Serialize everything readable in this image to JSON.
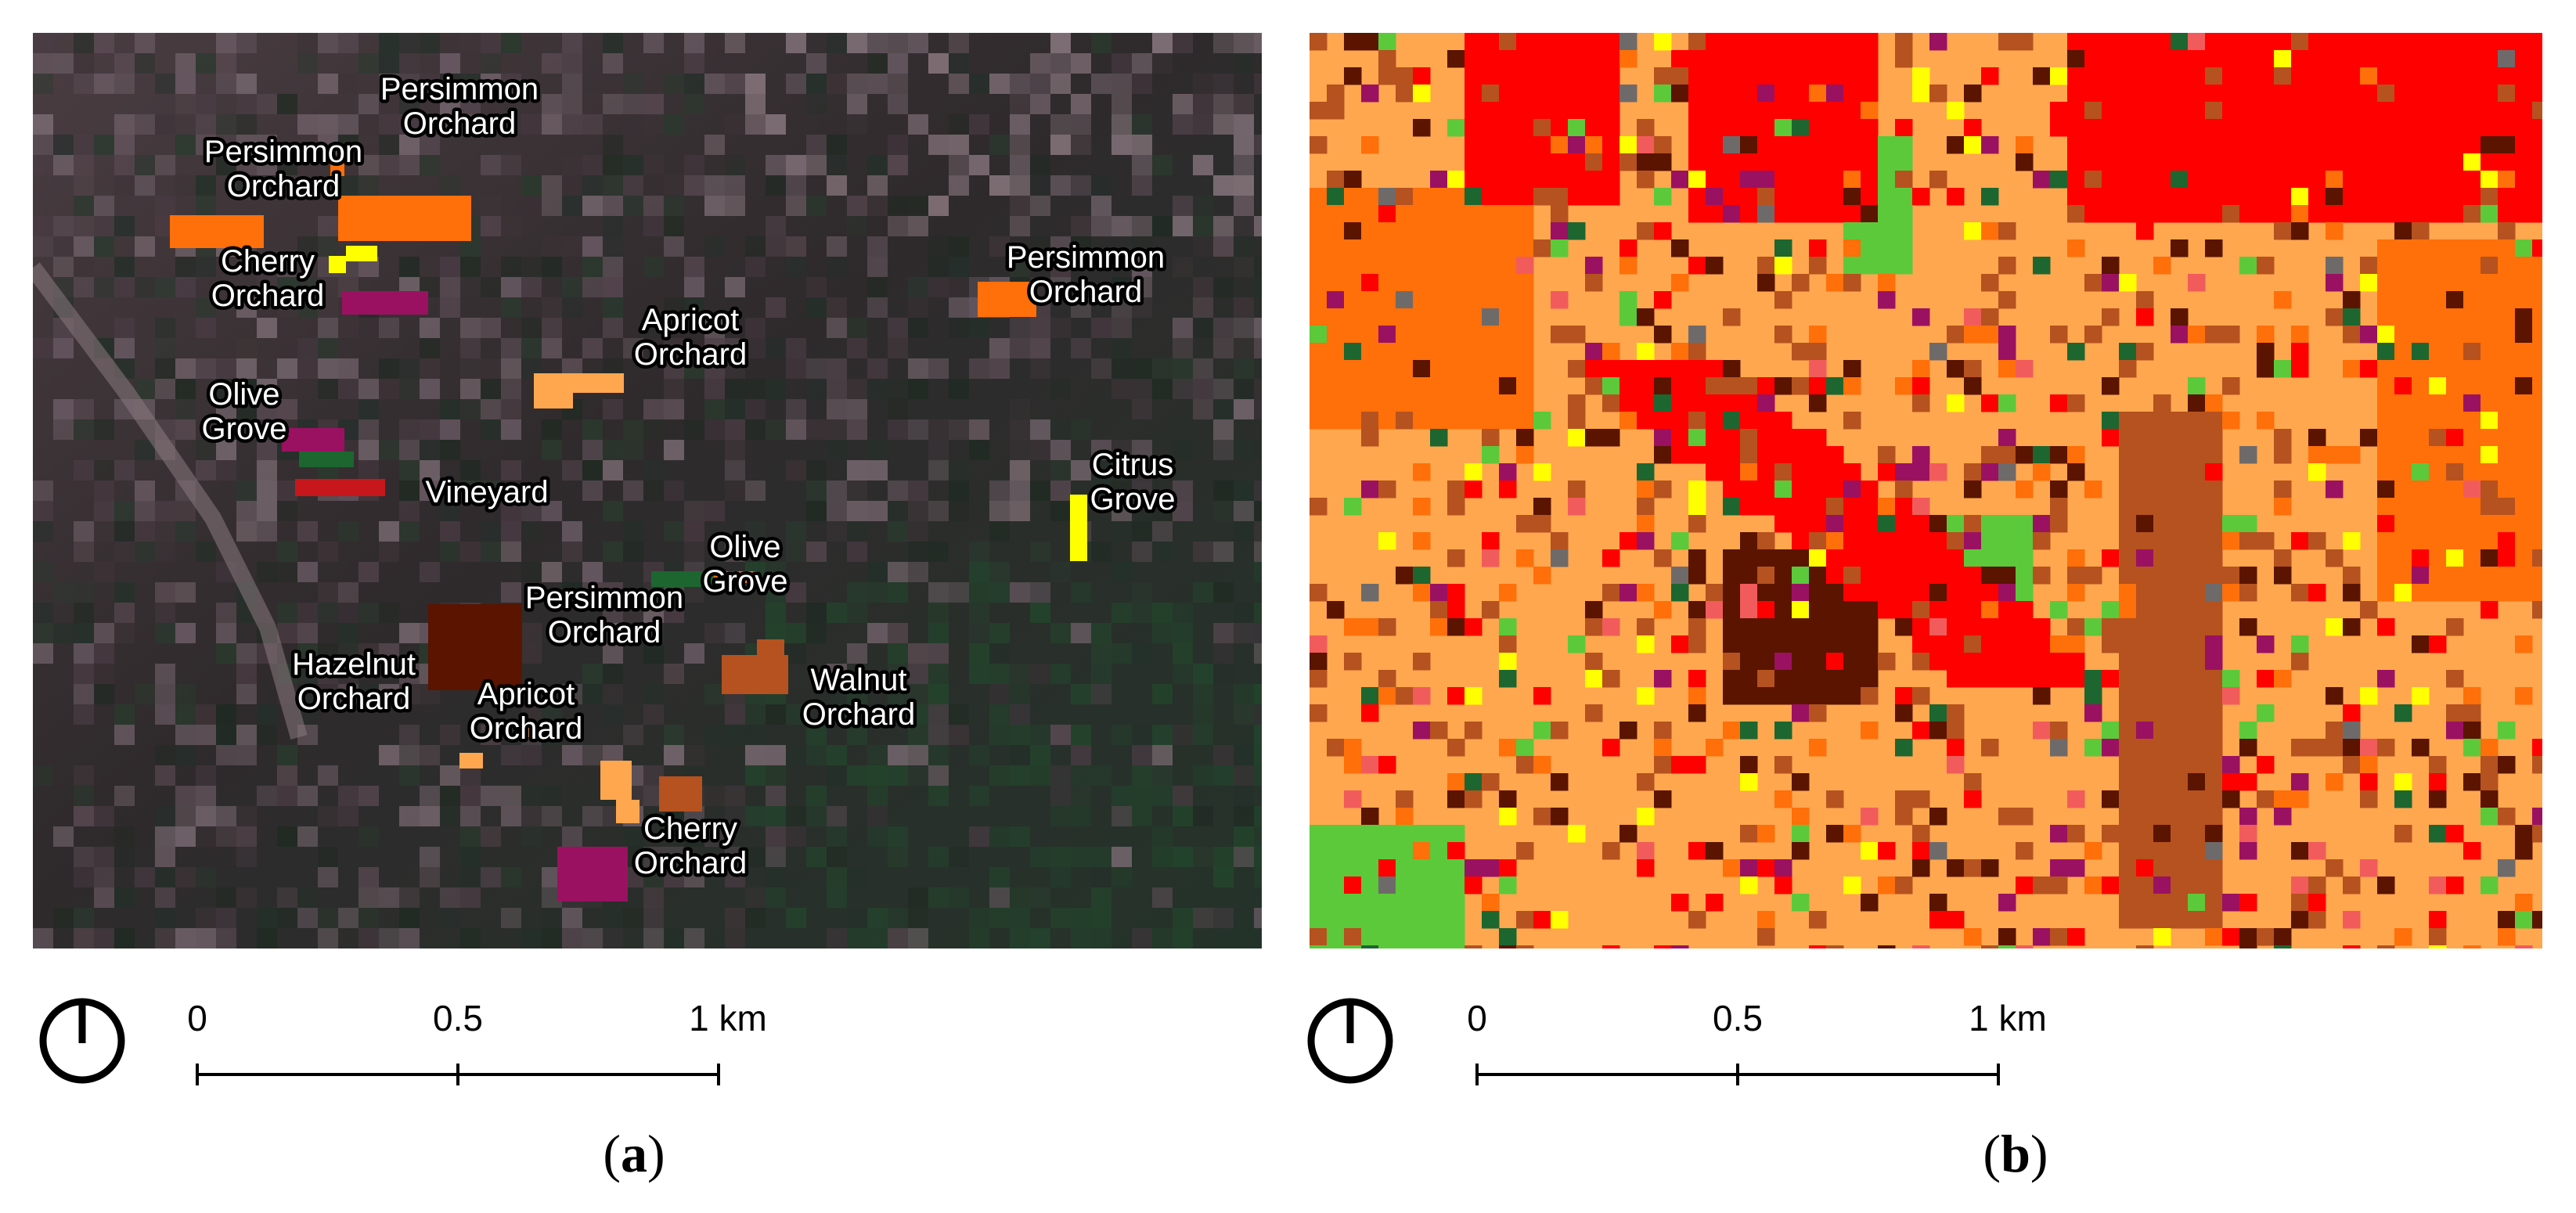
{
  "colors": {
    "persimmon": "#ff6f0a",
    "apricot": "#ffa74f",
    "cherry": "#9b1161",
    "citrus": "#ffff00",
    "olive_walnut": "#b5521f",
    "hazelnut": "#5a1400",
    "vineyard": "#c8171c",
    "grass": "#5cc93a",
    "red": "#ff0000",
    "pink": "#f25b5b",
    "gray": "#6f6a6a",
    "darkgreen": "#1d6630",
    "satellite_bg": "#3a2a30"
  },
  "panel_a": {
    "caption_open": "(",
    "caption_letter": "a",
    "caption_close": ")",
    "labels": [
      {
        "id": "persimmon-1",
        "lines": [
          "Persimmon",
          "Orchard"
        ]
      },
      {
        "id": "persimmon-2",
        "lines": [
          "Persimmon",
          "Orchard"
        ]
      },
      {
        "id": "cherry-1",
        "lines": [
          "Cherry",
          "Orchard"
        ]
      },
      {
        "id": "persimmon-3",
        "lines": [
          "Persimmon",
          "Orchard"
        ]
      },
      {
        "id": "apricot-1",
        "lines": [
          "Apricot",
          "Orchard"
        ]
      },
      {
        "id": "olive-1",
        "lines": [
          "Olive",
          "Grove"
        ]
      },
      {
        "id": "vineyard-1",
        "lines": [
          "Vineyard"
        ]
      },
      {
        "id": "citrus-1",
        "lines": [
          "Citrus",
          "Grove"
        ]
      },
      {
        "id": "olive-2",
        "lines": [
          "Olive",
          "Grove"
        ]
      },
      {
        "id": "persimmon-4",
        "lines": [
          "Persimmon",
          "Orchard"
        ]
      },
      {
        "id": "hazelnut-1",
        "lines": [
          "Hazelnut",
          "Orchard"
        ]
      },
      {
        "id": "walnut-1",
        "lines": [
          "Walnut",
          "Orchard"
        ]
      },
      {
        "id": "apricot-2",
        "lines": [
          "Apricot",
          "Orchard"
        ]
      },
      {
        "id": "cherry-2",
        "lines": [
          "Cherry",
          "Orchard"
        ]
      }
    ],
    "scale": {
      "ticks": [
        "0",
        "0.5",
        "1 km"
      ]
    }
  },
  "panel_b": {
    "caption_open": "(",
    "caption_letter": "b",
    "caption_close": ")",
    "scale": {
      "ticks": [
        "0",
        "0.5",
        "1 km"
      ]
    }
  }
}
